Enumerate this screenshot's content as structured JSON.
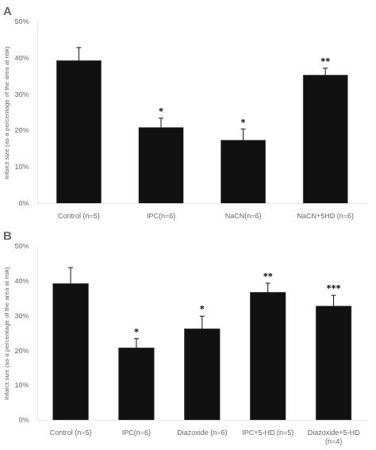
{
  "chart_data": [
    {
      "type": "bar",
      "title": "A",
      "categories": [
        "Control (n=5)",
        "IPC(n=6)",
        "NaCN(n=6)",
        "NaCN+5HD (n=6)"
      ],
      "values": [
        39.5,
        21.0,
        17.5,
        35.5
      ],
      "errors": [
        3.5,
        2.5,
        3.0,
        1.8
      ],
      "color": "#111111",
      "ylabel": "Infarct size (as a percentage of the area at risk)",
      "ylim": [
        0,
        50
      ],
      "yticks": [
        {
          "value": 0,
          "label": "0%"
        },
        {
          "value": 10,
          "label": "10%"
        },
        {
          "value": 20,
          "label": "20%"
        },
        {
          "value": 30,
          "label": "30%"
        },
        {
          "value": 40,
          "label": "40%"
        },
        {
          "value": 50,
          "label": "50%"
        }
      ],
      "grid": false,
      "annotations": [
        {
          "category": "IPC(n=6)",
          "text": "*"
        },
        {
          "category": "NaCN(n=6)",
          "text": "*"
        },
        {
          "category": "NaCN+5HD (n=6)",
          "text": "**"
        }
      ]
    },
    {
      "type": "bar",
      "title": "B",
      "categories": [
        "Control (n=5)",
        "IPC(n=6)",
        "Diazoxide (n=6)",
        "IPC+5-HD (n=5)",
        "Diazoxide+5-HD\n(n=4)"
      ],
      "values": [
        39.5,
        21.0,
        26.5,
        37.0,
        33.0
      ],
      "errors": [
        4.5,
        2.5,
        3.5,
        2.5,
        3.0
      ],
      "color": "#111111",
      "ylabel": "Infarct size (as a percentage of the area at risk)",
      "ylim": [
        0,
        50
      ],
      "yticks": [
        {
          "value": 0,
          "label": "0%"
        },
        {
          "value": 10,
          "label": "10%"
        },
        {
          "value": 20,
          "label": "20%"
        },
        {
          "value": 30,
          "label": "30%"
        },
        {
          "value": 40,
          "label": "40%"
        },
        {
          "value": 50,
          "label": "50%"
        }
      ],
      "grid": false,
      "annotations": [
        {
          "category": "IPC(n=6)",
          "text": "*"
        },
        {
          "category": "Diazoxide (n=6)",
          "text": "*"
        },
        {
          "category": "IPC+5-HD (n=5)",
          "text": "**"
        },
        {
          "category": "Diazoxide+5-HD\n(n=4)",
          "text": "***"
        }
      ]
    }
  ]
}
